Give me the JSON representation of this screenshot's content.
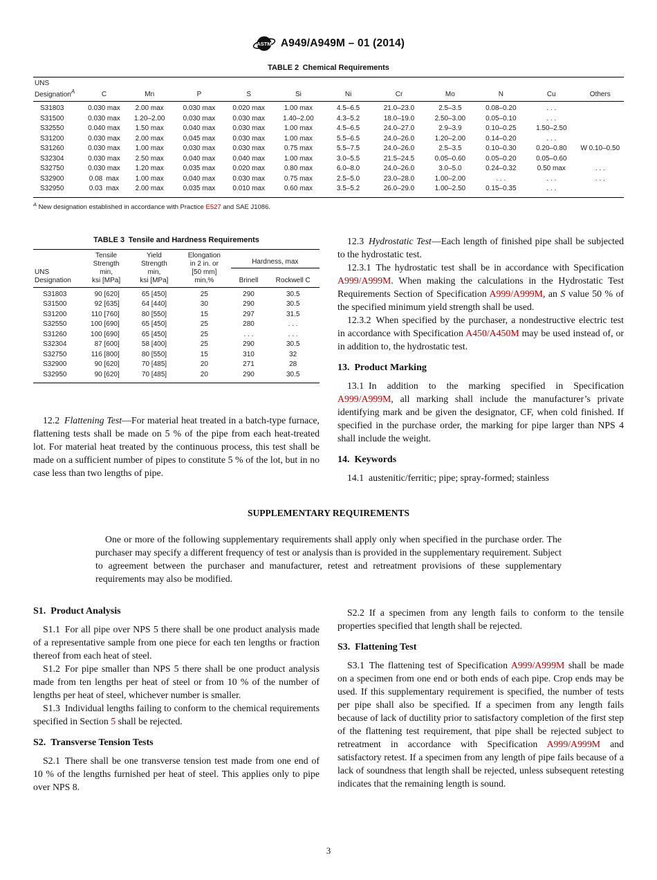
{
  "page_number": "3",
  "colors": {
    "link_red": "#c00000",
    "text": "#111111"
  },
  "header": {
    "logo_text": "ASTM",
    "title": "A949/A949M – 01 (2014)"
  },
  "table2": {
    "title": "TABLE 2 Chemical Requirements",
    "h_uns1": "UNS",
    "h_uns2": [
      {
        "t": "Designation"
      },
      {
        "t": "A",
        "s": "sup"
      }
    ],
    "columns": [
      "C",
      "Mn",
      "P",
      "S",
      "Si",
      "Ni",
      "Cr",
      "Mo",
      "N",
      "Cu",
      "Others"
    ],
    "rows": [
      [
        "S31803",
        "0.030 max",
        "2.00 max",
        "0.030 max",
        "0.020 max",
        "1.00 max",
        "4.5–6.5",
        "21.0–23.0",
        "2.5–3.5",
        "0.08–0.20",
        ". . .",
        ""
      ],
      [
        "S31500",
        "0.030 max",
        "1.20–2.00",
        "0.030 max",
        "0.030 max",
        "1.40–2.00",
        "4.3–5.2",
        "18.0–19.0",
        "2.50–3.00",
        "0.05–0.10",
        ". . .",
        ""
      ],
      [
        "S32550",
        "0.040 max",
        "1.50 max",
        "0.040 max",
        "0.030 max",
        "1.00 max",
        "4.5–6.5",
        "24.0–27.0",
        "2.9–3.9",
        "0.10–0.25",
        "1.50–2.50",
        ""
      ],
      [
        "S31200",
        "0.030 max",
        "2.00 max",
        "0.045 max",
        "0.030 max",
        "1.00 max",
        "5.5–6.5",
        "24.0–26.0",
        "1.20–2.00",
        "0.14–0.20",
        ". . .",
        ""
      ],
      [
        "S31260",
        "0.030 max",
        "1.00 max",
        "0.030 max",
        "0.030 max",
        "0.75 max",
        "5.5–7.5",
        "24.0–26.0",
        "2.5–3.5",
        "0.10–0.30",
        "0.20–0.80",
        "W 0.10–0.50"
      ],
      [
        "S32304",
        "0.030 max",
        "2.50 max",
        "0.040 max",
        "0.040 max",
        "1.00 max",
        "3.0–5.5",
        "21.5–24.5",
        "0.05–0.60",
        "0.05–0.20",
        "0.05–0.60",
        ""
      ],
      [
        "S32750",
        "0.030 max",
        "1.20 max",
        "0.035 max",
        "0.020 max",
        "0.80 max",
        "6.0–8.0",
        "24.0–26.0",
        "3.0–5.0",
        "0.24–0.32",
        "0.50 max",
        ". . ."
      ],
      [
        "S32900",
        "0.08 max",
        "1.00 max",
        "0.040 max",
        "0.030 max",
        "0.75 max",
        "2.5–5.0",
        "23.0–28.0",
        "1.00–2.00",
        ". . .",
        ". . .",
        ". . ."
      ],
      [
        "S32950",
        "0.03 max",
        "2.00 max",
        "0.035 max",
        "0.010 max",
        "0.60 max",
        "3.5–5.2",
        "26.0–29.0",
        "1.00–2.50",
        "0.15–0.35",
        ". . .",
        ""
      ]
    ],
    "footnote": [
      {
        "t": "A",
        "s": "sup"
      },
      {
        "t": " New designation established in accordance with Practice "
      },
      {
        "t": "E527",
        "s": "link"
      },
      {
        "t": " and SAE J1086."
      }
    ]
  },
  "table3": {
    "title": "TABLE 3 Tensile and Hardness Requirements",
    "h_uns": "UNS\nDesignation",
    "h_tensile": "Tensile\nStrength\nmin,\nksi [MPa]",
    "h_yield": "Yield\nStrength\nmin,\nksi [MPa]",
    "h_elong": "Elongation\nin 2 in. or\n[50 mm]\nmin,%",
    "h_hardness": "Hardness, max",
    "h_brinell": "Brinell",
    "h_rockwell": "Rockwell C",
    "rows": [
      [
        "S31803",
        "90 [620]",
        "65 [450]",
        "25",
        "290",
        "30.5"
      ],
      [
        "S31500",
        "92 [635]",
        "64 [440]",
        "30",
        "290",
        "30.5"
      ],
      [
        "S31200",
        "110 [760]",
        "80 [550]",
        "15",
        "297",
        "31.5"
      ],
      [
        "S32550",
        "100 [690]",
        "65 [450]",
        "25",
        "280",
        ". . ."
      ],
      [
        "S31260",
        "100 [690]",
        "65 [450]",
        "25",
        ". . .",
        ". . ."
      ],
      [
        "S32304",
        "87 [600]",
        "58 [400]",
        "25",
        "290",
        "30.5"
      ],
      [
        "S32750",
        "116 [800]",
        "80 [550]",
        "15",
        "310",
        "32"
      ],
      [
        "S32900",
        "90 [620]",
        "70 [485]",
        "20",
        "271",
        "28"
      ],
      [
        "S32950",
        "90 [620]",
        "70 [485]",
        "20",
        "290",
        "30.5"
      ]
    ]
  },
  "sections": {
    "p12_2": [
      {
        "t": "12.2 "
      },
      {
        "t": "Flattening Test",
        "s": "i"
      },
      {
        "t": "—For material heat treated in a batch-type furnace, flattening tests shall be made on 5 % of the pipe from each heat-treated lot. For material heat treated by the continuous process, this test shall be made on a sufficient number of pipes to constitute 5 % of the lot, but in no case less than two lengths of pipe."
      }
    ],
    "p12_3": [
      {
        "t": "12.3 "
      },
      {
        "t": "Hydrostatic Test",
        "s": "i"
      },
      {
        "t": "—Each length of finished pipe shall be subjected to the hydrostatic test."
      }
    ],
    "p12_3_1": [
      {
        "t": "12.3.1 The hydrostatic test shall be in accordance with Specification "
      },
      {
        "t": "A999/A999M",
        "s": "link"
      },
      {
        "t": ". When making the calculations in the Hydrostatic Test Requirements Section of Specification "
      },
      {
        "t": "A999/A999M",
        "s": "link"
      },
      {
        "t": ", an "
      },
      {
        "t": "S",
        "s": "i"
      },
      {
        "t": " value 50 % of the specified minimum yield strength shall be used."
      }
    ],
    "p12_3_2": [
      {
        "t": "12.3.2 When specified by the purchaser, a nondestructive electric test in accordance with Specification "
      },
      {
        "t": "A450/A450M",
        "s": "link"
      },
      {
        "t": " may be used instead of, or in addition to, the hydrostatic test."
      }
    ],
    "h13": "13. Product Marking",
    "p13_1": [
      {
        "t": "13.1 In addition to the marking specified in Specification "
      },
      {
        "t": "A999/A999M",
        "s": "link"
      },
      {
        "t": ", all marking shall include the manufacturer’s private identifying mark and be given the designator, CF, when cold finished. If specified in the purchase order, the marking for pipe larger than NPS 4 shall include the weight."
      }
    ],
    "h14": "14. Keywords",
    "p14_1": "14.1 austenitic/ferritic; pipe; spray-formed; stainless"
  },
  "supplementary": {
    "heading": "SUPPLEMENTARY REQUIREMENTS",
    "intro": "One or more of the following supplementary requirements shall apply only when specified in the purchase order. The purchaser may specify a different frequency of test or analysis than is provided in the supplementary requirement. Subject to agreement between the purchaser and manufacturer, retest and retreatment provisions of these supplementary requirements may also be modified.",
    "hS1": "S1. Product Analysis",
    "pS1_1": "S1.1 For all pipe over NPS 5 there shall be one product analysis made of a representative sample from one piece for each ten lengths or fraction thereof from each heat of steel.",
    "pS1_2": "S1.2 For pipe smaller than NPS 5 there shall be one product analysis made from ten lengths per heat of steel or from 10 % of the number of lengths per heat of steel, whichever number is smaller.",
    "pS1_3": [
      {
        "t": "S1.3 Individual lengths failing to conform to the chemical requirements specified in Section "
      },
      {
        "t": "5",
        "s": "link"
      },
      {
        "t": " shall be rejected."
      }
    ],
    "hS2": "S2. Transverse Tension Tests",
    "pS2_1": "S2.1 There shall be one transverse tension test made from one end of 10 % of the lengths furnished per heat of steel. This applies only to pipe over NPS 8.",
    "pS2_2": "S2.2 If a specimen from any length fails to conform to the tensile properties specified that length shall be rejected.",
    "hS3": "S3. Flattening Test",
    "pS3_1": [
      {
        "t": "S3.1 The flattening test of Specification "
      },
      {
        "t": "A999/A999M",
        "s": "link"
      },
      {
        "t": " shall be made on a specimen from one end or both ends of each pipe. Crop ends may be used. If this supplementary requirement is specified, the number of tests per pipe shall also be specified. If a specimen from any length fails because of lack of ductility prior to satisfactory completion of the first step of the flattening test requirement, that pipe shall be rejected subject to retreatment in accordance with Specification "
      },
      {
        "t": "A999/A999M",
        "s": "link"
      },
      {
        "t": " and satisfactory retest. If a specimen from any length of pipe fails because of a lack of soundness that length shall be rejected, unless subsequent retesting indicates that the remaining length is sound."
      }
    ]
  }
}
